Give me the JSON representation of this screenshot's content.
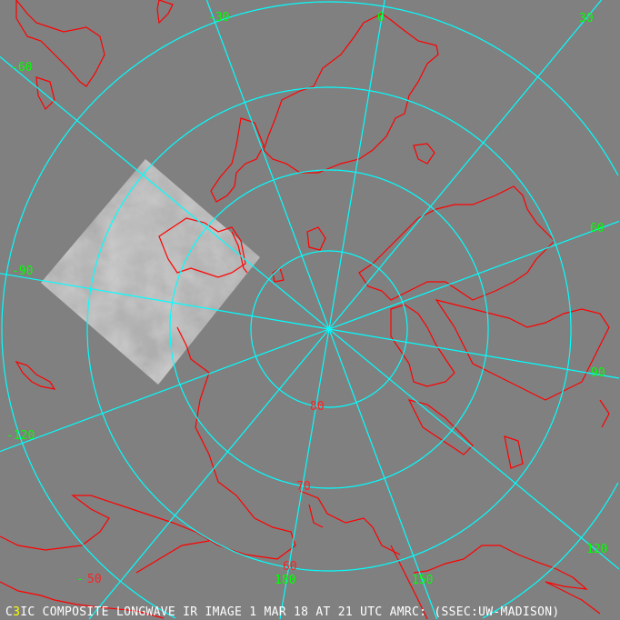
{
  "map": {
    "projection": "polar stereographic, north pole",
    "colors": {
      "background": "#808080",
      "graticule": "#00ffff",
      "coastline": "#ff0000",
      "longitude_labels": "#00ff00",
      "latitude_labels": "#ff2020",
      "caption": "#ffffff"
    },
    "longitude_labels": [
      "-30",
      "0",
      "30",
      "-60",
      "60",
      "-90",
      "90",
      "-120",
      "120",
      "180",
      "150",
      "-"
    ],
    "latitude_labels": [
      "80",
      "70",
      "60",
      "50"
    ],
    "latitude_circles": [
      80,
      70,
      60,
      50
    ],
    "meridian_step_deg": 30
  },
  "caption": {
    "prefix_a": "C",
    "prefix_b": "3",
    "prefix_c": "IC",
    "text": " COMPOSITE LONGWAVE IR IMAGE 1 MAR 18 AT 21 UTC AMRC: (SSEC:UW-MADISON)"
  }
}
